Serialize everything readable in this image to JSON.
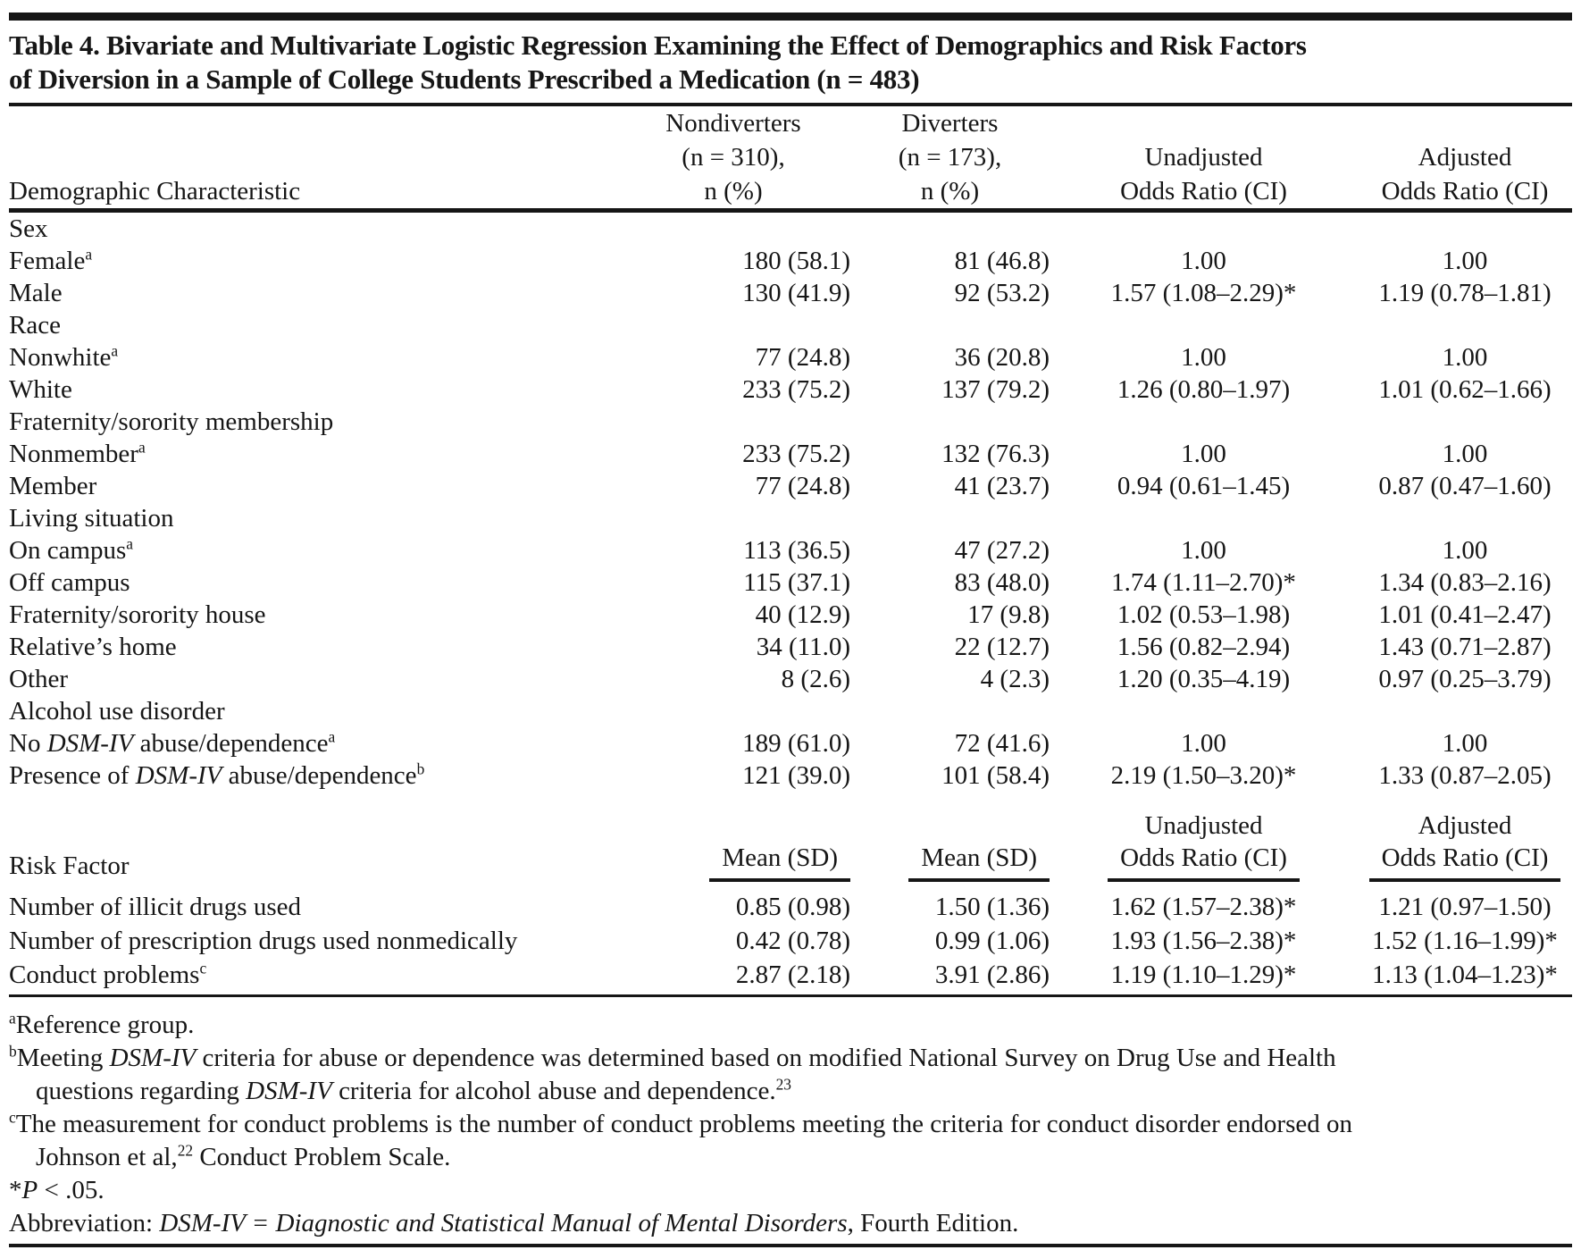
{
  "page": {
    "title_line1": "Table 4. Bivariate and Multivariate Logistic Regression Examining the Effect of Demographics and Risk Factors",
    "title_line2": "of Diversion in a Sample of College Students Prescribed a Medication (n = 483)"
  },
  "table": {
    "header": {
      "col1": "Demographic Characteristic",
      "col2": [
        "Nondiverters",
        "(n = 310),",
        "n (%)"
      ],
      "col3": [
        "Diverters",
        "(n = 173),",
        "n (%)"
      ],
      "col4": [
        "Unadjusted",
        "Odds Ratio (CI)"
      ],
      "col5": [
        "Adjusted",
        "Odds Ratio (CI)"
      ]
    },
    "demographic_rows": [
      {
        "label": [
          {
            "t": "Sex"
          }
        ],
        "indent": false,
        "values": [
          "",
          "",
          "",
          ""
        ]
      },
      {
        "label": [
          {
            "t": "Female"
          },
          {
            "t": "a",
            "style": "sup"
          }
        ],
        "indent": true,
        "values": [
          "180 (58.1)",
          "81 (46.8)",
          "1.00",
          "1.00"
        ]
      },
      {
        "label": [
          {
            "t": "Male"
          }
        ],
        "indent": true,
        "values": [
          "130 (41.9)",
          "92 (53.2)",
          "1.57 (1.08–2.29)*",
          "1.19 (0.78–1.81)"
        ]
      },
      {
        "label": [
          {
            "t": "Race"
          }
        ],
        "indent": false,
        "values": [
          "",
          "",
          "",
          ""
        ]
      },
      {
        "label": [
          {
            "t": "Nonwhite"
          },
          {
            "t": "a",
            "style": "sup"
          }
        ],
        "indent": true,
        "values": [
          "77 (24.8)",
          "36 (20.8)",
          "1.00",
          "1.00"
        ]
      },
      {
        "label": [
          {
            "t": "White"
          }
        ],
        "indent": true,
        "values": [
          "233 (75.2)",
          "137 (79.2)",
          "1.26 (0.80–1.97)",
          "1.01 (0.62–1.66)"
        ]
      },
      {
        "label": [
          {
            "t": "Fraternity/sorority membership"
          }
        ],
        "indent": false,
        "values": [
          "",
          "",
          "",
          ""
        ]
      },
      {
        "label": [
          {
            "t": "Nonmember"
          },
          {
            "t": "a",
            "style": "sup"
          }
        ],
        "indent": true,
        "values": [
          "233 (75.2)",
          "132 (76.3)",
          "1.00",
          "1.00"
        ]
      },
      {
        "label": [
          {
            "t": "Member"
          }
        ],
        "indent": true,
        "values": [
          "77 (24.8)",
          "41 (23.7)",
          "0.94 (0.61–1.45)",
          "0.87 (0.47–1.60)"
        ]
      },
      {
        "label": [
          {
            "t": "Living situation"
          }
        ],
        "indent": false,
        "values": [
          "",
          "",
          "",
          ""
        ]
      },
      {
        "label": [
          {
            "t": "On campus"
          },
          {
            "t": "a",
            "style": "sup"
          }
        ],
        "indent": true,
        "values": [
          "113 (36.5)",
          "47 (27.2)",
          "1.00",
          "1.00"
        ]
      },
      {
        "label": [
          {
            "t": "Off campus"
          }
        ],
        "indent": true,
        "values": [
          "115 (37.1)",
          "83 (48.0)",
          "1.74 (1.11–2.70)*",
          "1.34 (0.83–2.16)"
        ]
      },
      {
        "label": [
          {
            "t": "Fraternity/sorority house"
          }
        ],
        "indent": true,
        "values": [
          "40 (12.9)",
          "17 (9.8)",
          "1.02 (0.53–1.98)",
          "1.01 (0.41–2.47)"
        ]
      },
      {
        "label": [
          {
            "t": "Relative’s home"
          }
        ],
        "indent": true,
        "values": [
          "34 (11.0)",
          "22 (12.7)",
          "1.56 (0.82–2.94)",
          "1.43 (0.71–2.87)"
        ]
      },
      {
        "label": [
          {
            "t": "Other"
          }
        ],
        "indent": true,
        "values": [
          "8 (2.6)",
          "4 (2.3)",
          "1.20 (0.35–4.19)",
          "0.97 (0.25–3.79)"
        ]
      },
      {
        "label": [
          {
            "t": "Alcohol use disorder"
          }
        ],
        "indent": false,
        "values": [
          "",
          "",
          "",
          ""
        ]
      },
      {
        "label": [
          {
            "t": "No "
          },
          {
            "t": "DSM-IV",
            "style": "i"
          },
          {
            "t": " abuse/dependence"
          },
          {
            "t": "a",
            "style": "sup"
          }
        ],
        "indent": true,
        "values": [
          "189 (61.0)",
          "72 (41.6)",
          "1.00",
          "1.00"
        ]
      },
      {
        "label": [
          {
            "t": "Presence of "
          },
          {
            "t": "DSM-IV",
            "style": "i"
          },
          {
            "t": " abuse/dependence"
          },
          {
            "t": "b",
            "style": "sup"
          }
        ],
        "indent": true,
        "values": [
          "121 (39.0)",
          "101 (58.4)",
          "2.19 (1.50–3.20)*",
          "1.33 (0.87–2.05)"
        ]
      }
    ],
    "risk_header": {
      "pre": [
        "Unadjusted",
        "Adjusted"
      ],
      "col1": "Risk Factor",
      "cols": [
        "Mean (SD)",
        "Mean (SD)",
        "Odds Ratio (CI)",
        "Odds Ratio (CI)"
      ]
    },
    "risk_rows": [
      {
        "label": [
          {
            "t": "Number of illicit drugs used"
          }
        ],
        "indent": true,
        "values": [
          "0.85 (0.98)",
          "1.50 (1.36)",
          "1.62 (1.57–2.38)*",
          "1.21 (0.97–1.50)"
        ]
      },
      {
        "label": [
          {
            "t": "Number of prescription drugs used nonmedically"
          }
        ],
        "indent": true,
        "values": [
          "0.42 (0.78)",
          "0.99 (1.06)",
          "1.93 (1.56–2.38)*",
          "1.52 (1.16–1.99)*"
        ]
      },
      {
        "label": [
          {
            "t": "Conduct problems"
          },
          {
            "t": "c",
            "style": "sup"
          }
        ],
        "indent": true,
        "values": [
          "2.87 (2.18)",
          "3.91 (2.86)",
          "1.19 (1.10–1.29)*",
          "1.13 (1.04–1.23)*"
        ]
      }
    ]
  },
  "footnotes": [
    {
      "lines": [
        [
          {
            "t": "a",
            "style": "sup"
          },
          {
            "t": "Reference group."
          }
        ]
      ]
    },
    {
      "lines": [
        [
          {
            "t": "b",
            "style": "sup"
          },
          {
            "t": "Meeting "
          },
          {
            "t": "DSM-IV",
            "style": "i"
          },
          {
            "t": " criteria for abuse or dependence was determined based on modified National Survey on Drug Use and Health"
          }
        ],
        [
          {
            "t": "questions regarding "
          },
          {
            "t": "DSM-IV",
            "style": "i"
          },
          {
            "t": " criteria for alcohol abuse and dependence."
          },
          {
            "t": "23",
            "style": "sup"
          }
        ]
      ]
    },
    {
      "lines": [
        [
          {
            "t": "c",
            "style": "sup"
          },
          {
            "t": "The measurement for conduct problems is the number of conduct problems meeting the criteria for conduct disorder endorsed on"
          }
        ],
        [
          {
            "t": "Johnson et al,"
          },
          {
            "t": "22",
            "style": "sup"
          },
          {
            "t": " Conduct Problem Scale."
          }
        ]
      ]
    },
    {
      "lines": [
        [
          {
            "t": "*"
          },
          {
            "t": "P",
            "style": "i"
          },
          {
            "t": " < .05."
          }
        ]
      ]
    },
    {
      "lines": [
        [
          {
            "t": "Abbreviation: "
          },
          {
            "t": "DSM-IV = Diagnostic and Statistical Manual of Mental Disorders",
            "style": "i"
          },
          {
            "t": ", Fourth Edition."
          }
        ]
      ]
    }
  ]
}
